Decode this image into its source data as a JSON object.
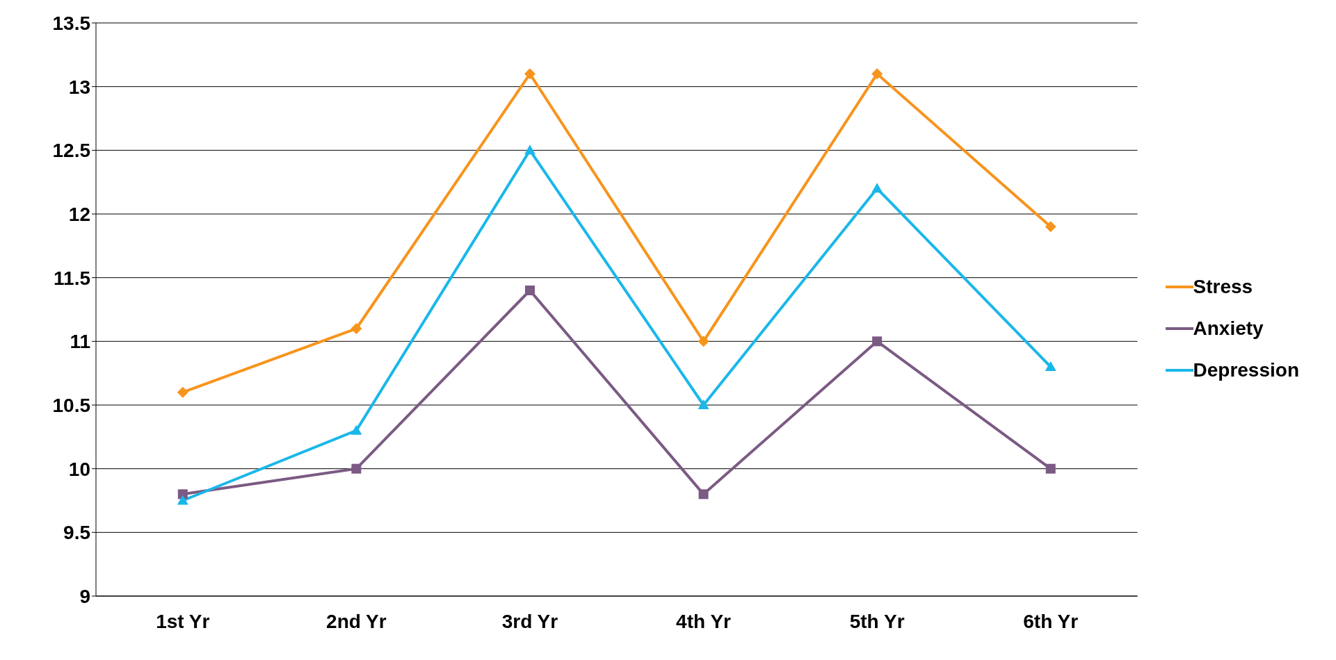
{
  "chart_data": {
    "type": "line",
    "categories": [
      "1st Yr",
      "2nd Yr",
      "3rd Yr",
      "4th Yr",
      "5th Yr",
      "6th Yr"
    ],
    "series": [
      {
        "name": "Stress",
        "color": "#f7941d",
        "marker": "diamond",
        "values": [
          10.6,
          11.1,
          13.1,
          11.0,
          13.1,
          11.9
        ]
      },
      {
        "name": "Anxiety",
        "color": "#7b5a83",
        "marker": "square",
        "values": [
          9.8,
          10.0,
          11.4,
          9.8,
          11.0,
          10.0
        ]
      },
      {
        "name": "Depression",
        "color": "#1ab7ea",
        "marker": "triangle",
        "values": [
          9.75,
          10.3,
          12.5,
          10.5,
          12.2,
          10.8
        ]
      }
    ],
    "ylim": [
      9,
      13.5
    ],
    "yticks": [
      9,
      9.5,
      10,
      10.5,
      11,
      11.5,
      12,
      12.5,
      13,
      13.5
    ],
    "grid": "y",
    "legend": "right",
    "line_style": "solid"
  }
}
